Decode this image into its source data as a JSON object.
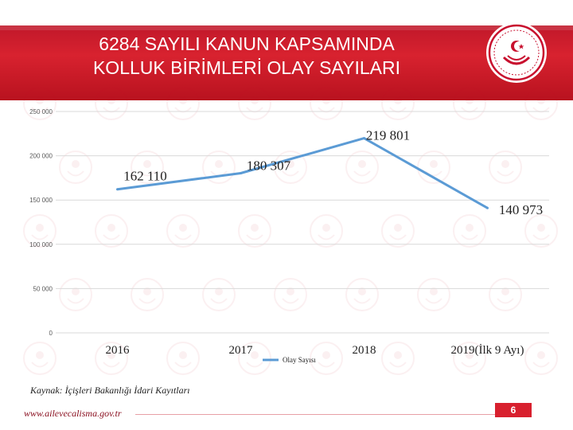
{
  "slide": {
    "title_line1": "6284 SAYILI KANUN KAPSAMINDA",
    "title_line2": "KOLLUK BİRİMLERİ OLAY SAYILARI",
    "source": "Kaynak: İçişleri Bakanlığı İdari Kayıtları",
    "website": "www.ailevecalisma.gov.tr",
    "page_number": "6"
  },
  "colors": {
    "header": "#d8222f",
    "line": "#5b9bd5",
    "grid": "#d9d9d9",
    "page_badge": "#d8202e"
  },
  "chart_data": {
    "type": "line",
    "categories": [
      "2016",
      "2017",
      "2018",
      "2019(İlk 9 Ayı)"
    ],
    "series": [
      {
        "name": "Olay Sayısı",
        "values": [
          162110,
          180307,
          219801,
          140973
        ]
      }
    ],
    "data_labels": [
      "162 110",
      "180 307",
      "219 801",
      "140 973"
    ],
    "y_ticks": [
      0,
      50000,
      100000,
      150000,
      200000,
      250000
    ],
    "y_tick_labels": [
      "0",
      "50 000",
      "100 000",
      "150 000",
      "200 000",
      "250 000"
    ],
    "ylim": [
      0,
      250000
    ],
    "grid": true,
    "legend_position": "bottom"
  }
}
